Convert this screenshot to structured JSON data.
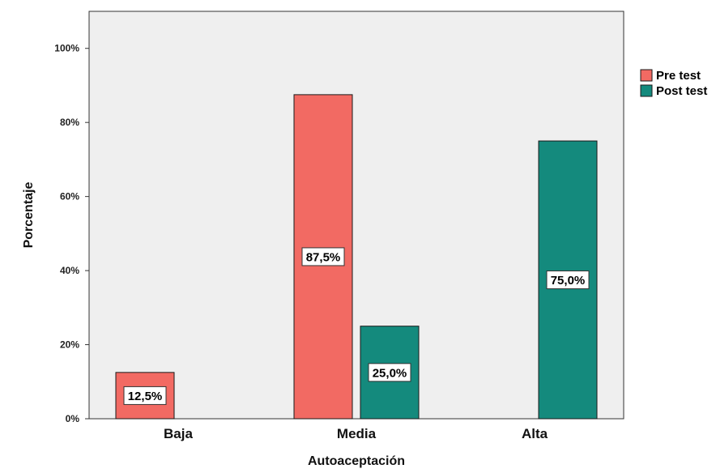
{
  "chart_data": {
    "type": "bar",
    "categories": [
      "Baja",
      "Media",
      "Alta"
    ],
    "series": [
      {
        "name": "Pre test",
        "values": [
          12.5,
          87.5,
          0
        ],
        "color": "#f26a63"
      },
      {
        "name": "Post test",
        "values": [
          0,
          25.0,
          75.0
        ],
        "color": "#148a7d"
      }
    ],
    "data_labels": [
      {
        "series": 0,
        "category": 0,
        "text": "12,5%"
      },
      {
        "series": 0,
        "category": 1,
        "text": "87,5%"
      },
      {
        "series": 1,
        "category": 1,
        "text": "25,0%"
      },
      {
        "series": 1,
        "category": 2,
        "text": "75,0%"
      }
    ],
    "xlabel": "Autoaceptación",
    "ylabel": "Porcentaje",
    "ylim": [
      0,
      110
    ],
    "yticks": [
      0,
      20,
      40,
      60,
      80,
      100
    ],
    "ytick_labels": [
      "0%",
      "20%",
      "40%",
      "60%",
      "80%",
      "100%"
    ],
    "grid": false,
    "legend_position": "top-right",
    "plot_background": "#efefef"
  }
}
